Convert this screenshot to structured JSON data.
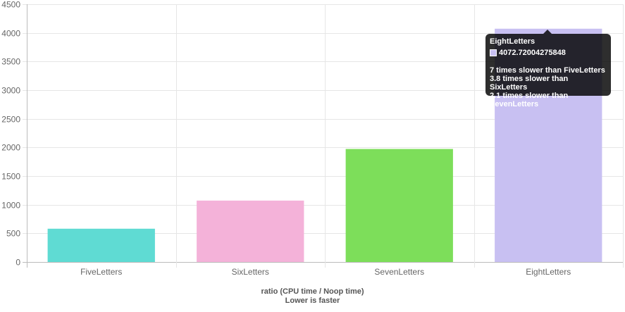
{
  "chart_data": {
    "type": "bar",
    "categories": [
      "FiveLetters",
      "SixLetters",
      "SevenLetters",
      "EightLetters"
    ],
    "values": [
      581,
      1072,
      1973,
      4072.72004275848
    ],
    "colors": [
      "#5fdbd3",
      "#f4b2d9",
      "#7dde5a",
      "#c8c0f2"
    ],
    "ylim": [
      0,
      4500
    ],
    "yticks": [
      0,
      500,
      1000,
      1500,
      2000,
      2500,
      3000,
      3500,
      4000,
      4500
    ],
    "grid": true,
    "xlabel_line1": "ratio (CPU time / Noop time)",
    "xlabel_line2": "Lower is faster"
  },
  "tooltip": {
    "title": "EightLetters",
    "value": "4072.72004275848",
    "swatch_color": "#c8c0f2",
    "lines": [
      "7 times slower than FiveLetters",
      "3.8 times slower than SixLetters",
      "2.1 times slower than SevenLetters"
    ]
  }
}
